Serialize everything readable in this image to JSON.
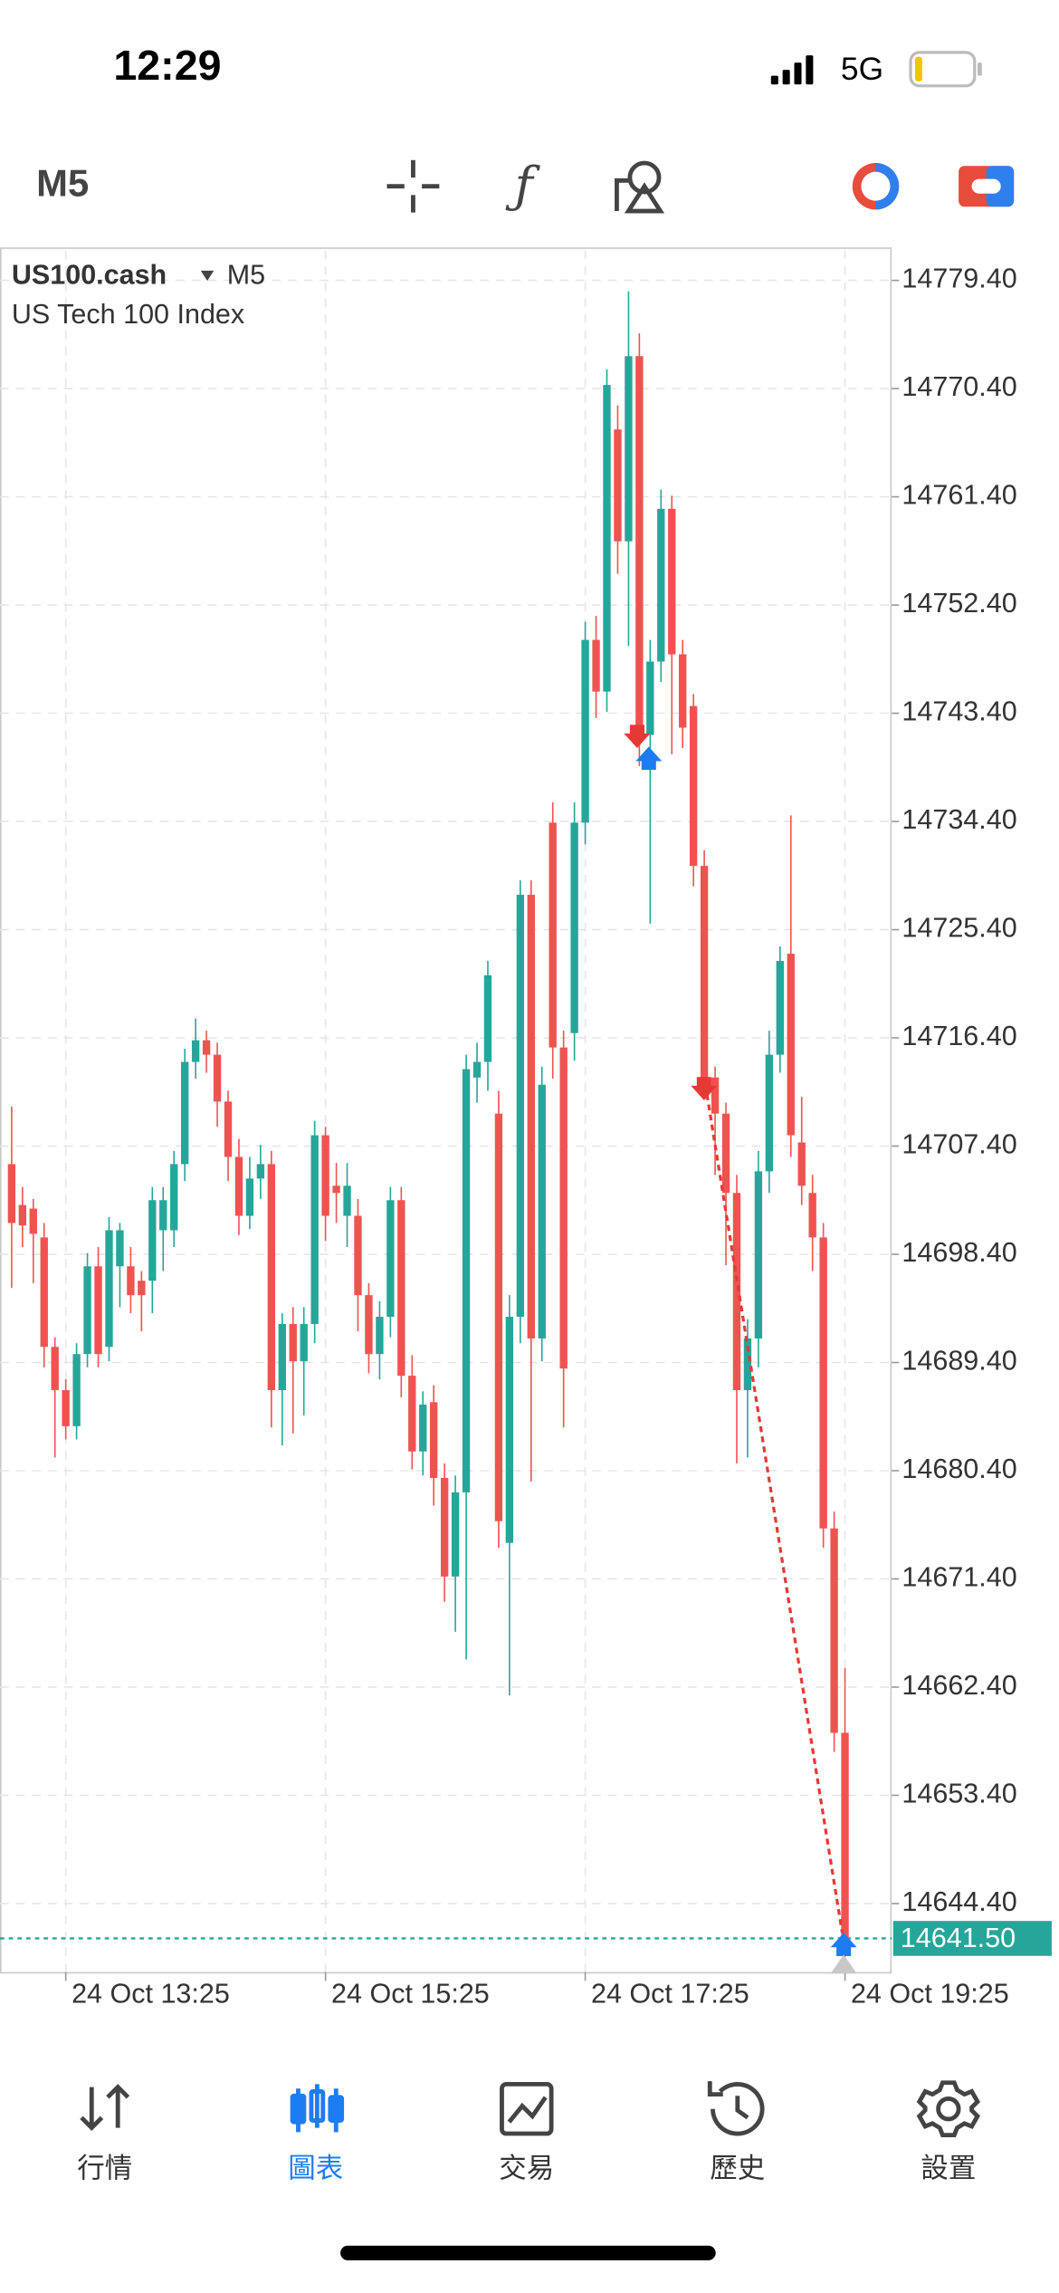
{
  "status_bar": {
    "time": "12:29",
    "network": "5G"
  },
  "toolbar": {
    "timeframe": "M5"
  },
  "chart_data": {
    "type": "candlestick",
    "title": "US100.cash",
    "timeframe": "M5",
    "subtitle": "US Tech 100 Index",
    "categories": [
      null,
      null,
      null,
      null,
      null,
      "24 Oct 13:25",
      null,
      null,
      null,
      null,
      null,
      null,
      null,
      null,
      null,
      null,
      null,
      null,
      null,
      null,
      null,
      null,
      null,
      null,
      null,
      null,
      null,
      null,
      null,
      "24 Oct 15:25",
      null,
      null,
      null,
      null,
      null,
      null,
      null,
      null,
      null,
      null,
      null,
      null,
      null,
      null,
      null,
      null,
      null,
      null,
      null,
      null,
      null,
      null,
      null,
      "24 Oct 17:25",
      null,
      null,
      null,
      null,
      null,
      null,
      null,
      null,
      null,
      null,
      null,
      null,
      null,
      null,
      null,
      null,
      null,
      null,
      null,
      null,
      null,
      null,
      null,
      "24 Oct 19:25"
    ],
    "open": [
      14705.9,
      14702.5,
      14702.2,
      14699.8,
      14690.7,
      14687.1,
      14684.1,
      14690.1,
      14697.4,
      14690.7,
      14697.4,
      14697.4,
      14696.2,
      14696.2,
      14700.4,
      14700.4,
      14705.9,
      14714.4,
      14716.2,
      14715.0,
      14711.1,
      14706.5,
      14701.6,
      14704.7,
      14705.9,
      14687.1,
      14692.6,
      14689.5,
      14692.6,
      14708.3,
      14704.1,
      14701.6,
      14701.6,
      14695.0,
      14690.1,
      14693.2,
      14702.9,
      14688.3,
      14682.0,
      14686.1,
      14679.8,
      14671.6,
      14678.6,
      14713.1,
      14714.4,
      14710.1,
      14674.4,
      14693.2,
      14728.3,
      14691.4,
      14734.3,
      14715.6,
      14716.8,
      14734.3,
      14749.5,
      14745.2,
      14767.0,
      14757.7,
      14773.1,
      14741.6,
      14747.7,
      14760.4,
      14748.3,
      14744.0,
      14730.7,
      14713.1,
      14710.1,
      14703.5,
      14687.1,
      14691.4,
      14705.3,
      14715.0,
      14723.4,
      14707.7,
      14703.5,
      14699.8,
      14675.6,
      14658.6
    ],
    "high": [
      14710.7,
      14704.0,
      14703.0,
      14701.0,
      14691.5,
      14688.0,
      14691.0,
      14698.5,
      14699.0,
      14701.5,
      14701.0,
      14699.0,
      14697.0,
      14704.0,
      14704.0,
      14707.0,
      14715.5,
      14718.0,
      14717.0,
      14716.0,
      14712.0,
      14708.0,
      14706.5,
      14707.5,
      14707.0,
      14693.5,
      14694.0,
      14694.0,
      14709.5,
      14709.0,
      14706.0,
      14706.0,
      14703.0,
      14696.0,
      14694.5,
      14704.0,
      14704.0,
      14690.0,
      14687.0,
      14687.5,
      14681.0,
      14680.0,
      14715.0,
      14716.0,
      14722.8,
      14712.0,
      14695.0,
      14729.5,
      14729.5,
      14714.0,
      14736.0,
      14717.0,
      14736.0,
      14751.0,
      14751.5,
      14772.0,
      14769.0,
      14778.5,
      14775.0,
      14749.5,
      14762.0,
      14761.5,
      14749.5,
      14745.0,
      14732.0,
      14714.0,
      14711.0,
      14705.0,
      14693.0,
      14707.0,
      14717.0,
      14724.0,
      14734.9,
      14711.5,
      14705.0,
      14701.0,
      14677.0,
      14664.0
    ],
    "low": [
      14695.6,
      14699.0,
      14696.0,
      14689.0,
      14681.5,
      14683.0,
      14683.0,
      14689.0,
      14689.0,
      14689.5,
      14694.0,
      14693.5,
      14692.0,
      14693.5,
      14697.0,
      14699.0,
      14704.5,
      14713.0,
      14713.5,
      14709.0,
      14704.5,
      14700.0,
      14700.5,
      14703.0,
      14684.0,
      14682.5,
      14683.5,
      14685.0,
      14691.0,
      14699.5,
      14701.0,
      14699.0,
      14692.0,
      14688.5,
      14688.0,
      14691.5,
      14686.5,
      14680.5,
      14680.0,
      14677.5,
      14669.5,
      14667.0,
      14664.7,
      14711.0,
      14712.0,
      14674.0,
      14661.7,
      14691.0,
      14679.5,
      14689.5,
      14713.0,
      14684.0,
      14714.5,
      14732.5,
      14743.0,
      14743.5,
      14755.0,
      14749.0,
      14739.0,
      14725.9,
      14746.0,
      14740.0,
      14740.5,
      14729.0,
      14711.5,
      14705.0,
      14697.5,
      14681.0,
      14681.5,
      14689.0,
      14703.5,
      14713.5,
      14706.5,
      14702.5,
      14697.0,
      14674.0,
      14657.0,
      14639.5
    ],
    "close": [
      14701.0,
      14700.8,
      14700.1,
      14690.7,
      14687.1,
      14684.1,
      14690.1,
      14697.4,
      14690.1,
      14700.4,
      14700.4,
      14695.0,
      14695.0,
      14702.9,
      14702.9,
      14705.9,
      14714.4,
      14716.2,
      14715.0,
      14711.1,
      14706.5,
      14701.6,
      14704.7,
      14705.9,
      14687.1,
      14692.6,
      14689.5,
      14692.6,
      14708.3,
      14701.6,
      14703.5,
      14704.1,
      14695.0,
      14690.1,
      14693.2,
      14702.9,
      14688.3,
      14682.0,
      14685.9,
      14679.8,
      14671.6,
      14678.6,
      14713.8,
      14714.4,
      14721.6,
      14676.2,
      14693.2,
      14728.3,
      14691.4,
      14712.5,
      14715.6,
      14688.9,
      14734.3,
      14749.5,
      14745.2,
      14770.7,
      14757.7,
      14773.1,
      14741.6,
      14747.7,
      14760.4,
      14748.3,
      14742.2,
      14730.7,
      14713.1,
      14710.1,
      14703.5,
      14687.1,
      14691.4,
      14705.3,
      14715.0,
      14722.8,
      14708.3,
      14704.1,
      14699.8,
      14675.6,
      14658.6,
      14641.5
    ],
    "up_color": "#26a69a",
    "down_color": "#ef5350",
    "ylim": [
      14638.7,
      14781.9
    ],
    "yticks": [
      {
        "value": 14779.4,
        "label": "14779.40"
      },
      {
        "value": 14770.4,
        "label": "14770.40"
      },
      {
        "value": 14761.4,
        "label": "14761.40"
      },
      {
        "value": 14752.4,
        "label": "14752.40"
      },
      {
        "value": 14743.4,
        "label": "14743.40"
      },
      {
        "value": 14734.4,
        "label": "14734.40"
      },
      {
        "value": 14725.4,
        "label": "14725.40"
      },
      {
        "value": 14716.4,
        "label": "14716.40"
      },
      {
        "value": 14707.4,
        "label": "14707.40"
      },
      {
        "value": 14698.4,
        "label": "14698.40"
      },
      {
        "value": 14689.4,
        "label": "14689.40"
      },
      {
        "value": 14680.4,
        "label": "14680.40"
      },
      {
        "value": 14671.4,
        "label": "14671.40"
      },
      {
        "value": 14662.4,
        "label": "14662.40"
      },
      {
        "value": 14653.4,
        "label": "14653.40"
      },
      {
        "value": 14644.4,
        "label": "14644.40"
      }
    ],
    "current_price": {
      "value": 14641.5,
      "label": "14641.50"
    },
    "grid": true
  },
  "tab_bar": {
    "tabs": [
      "行情",
      "圖表",
      "交易",
      "歷史",
      "設置"
    ],
    "active": 1
  }
}
